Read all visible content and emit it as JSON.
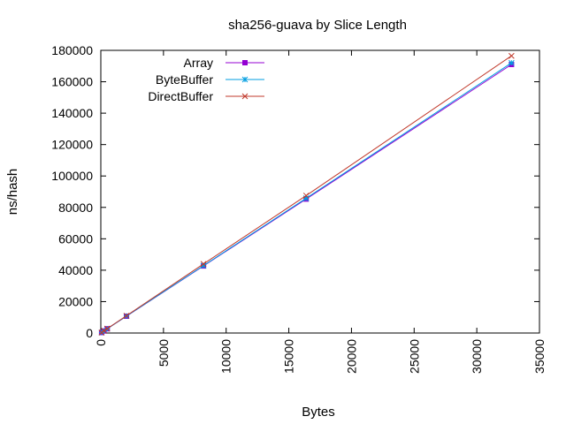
{
  "chart_data": {
    "type": "line",
    "title": "sha256-guava by Slice Length",
    "xlabel": "Bytes",
    "ylabel": "ns/hash",
    "xlim": [
      0,
      35000
    ],
    "ylim": [
      0,
      180000
    ],
    "xticks": [
      "0",
      "5000",
      "10000",
      "15000",
      "20000",
      "25000",
      "30000",
      "35000"
    ],
    "yticks": [
      "0",
      "20000",
      "40000",
      "60000",
      "80000",
      "100000",
      "120000",
      "140000",
      "160000",
      "180000"
    ],
    "grid": false,
    "legend_position": "top-left",
    "series": [
      {
        "name": "Array",
        "color": "#9400d3",
        "marker": "square",
        "x": [
          64,
          256,
          512,
          2048,
          8192,
          16384,
          32768
        ],
        "y": [
          300,
          1300,
          2700,
          10700,
          42700,
          85300,
          171000
        ]
      },
      {
        "name": "ByteBuffer",
        "color": "#009ee0",
        "marker": "star",
        "x": [
          64,
          256,
          512,
          2048,
          8192,
          16384,
          32768
        ],
        "y": [
          300,
          1300,
          2700,
          10800,
          42900,
          85800,
          172000
        ]
      },
      {
        "name": "DirectBuffer",
        "color": "#c0392b",
        "marker": "x",
        "x": [
          64,
          256,
          512,
          2048,
          8192,
          16384,
          32768
        ],
        "y": [
          300,
          1400,
          2800,
          11000,
          44000,
          87500,
          176500
        ]
      }
    ]
  }
}
